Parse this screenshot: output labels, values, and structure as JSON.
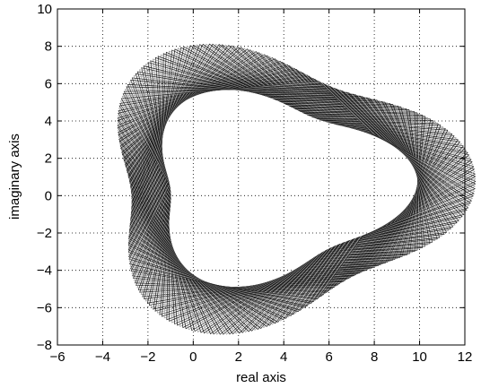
{
  "chart_data": {
    "type": "line",
    "title": "",
    "xlabel": "real axis",
    "ylabel": "imaginary axis",
    "xlim": [
      -6,
      12
    ],
    "ylim": [
      -8,
      10
    ],
    "x_ticks": [
      "-6",
      "-4",
      "-2",
      "0",
      "2",
      "4",
      "6",
      "8",
      "10",
      "12"
    ],
    "y_ticks": [
      "-8",
      "-6",
      "-4",
      "-2",
      "0",
      "2",
      "4",
      "6",
      "8",
      "10"
    ],
    "grid": true,
    "legend": "none",
    "curve_model": {
      "description": "family of rotated polygons; vertices v_k = c + z(theta)",
      "center": [
        3.5,
        0.5
      ],
      "inner_radius": 3.55,
      "outer_radius": 6.8,
      "vertices_per_polygon": 5,
      "polygon_count": 80,
      "distortion": 0.18
    },
    "colors": {
      "line_dark": "#1a1a1a",
      "line_light": "#9a9a9a"
    }
  }
}
